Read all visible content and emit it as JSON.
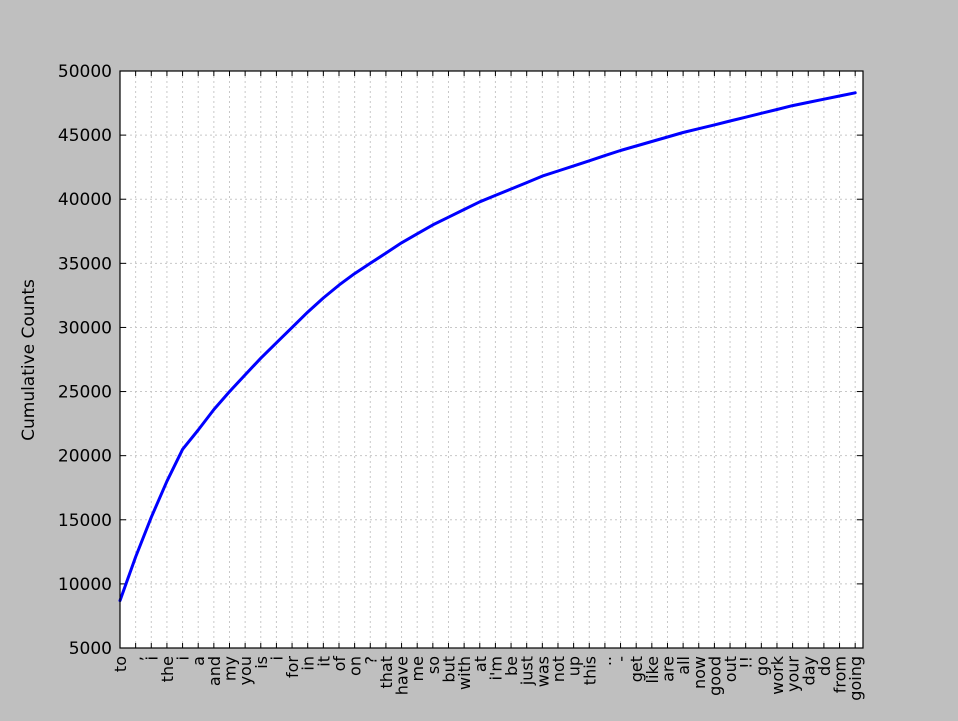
{
  "chart_data": {
    "type": "line",
    "title": "",
    "xlabel": "",
    "ylabel": "Cumulative Counts",
    "ylim": [
      5000,
      50000
    ],
    "yticks": [
      5000,
      10000,
      15000,
      20000,
      25000,
      30000,
      35000,
      40000,
      45000,
      50000
    ],
    "grid": true,
    "line_color": "#0000ff",
    "categories": [
      "to",
      ",",
      "i",
      "the",
      "i",
      "a",
      "and",
      "my",
      "you",
      "is",
      "i",
      "for",
      "in",
      "it",
      "of",
      "on",
      "?",
      "that",
      "have",
      "me",
      "so",
      "but",
      "with",
      "at",
      "i'm",
      "be",
      "just",
      "was",
      "not",
      "up",
      "this",
      "..",
      "-",
      "get",
      "like",
      "are",
      "all",
      "now",
      "good",
      "out",
      "!!",
      "go",
      "work",
      "your",
      "day",
      "do",
      "from",
      "going"
    ],
    "series": [
      {
        "values": [
          8700,
          12100,
          15200,
          18000,
          20500,
          22000,
          23600,
          25000,
          26300,
          27600,
          28800,
          30000,
          31200,
          32300,
          33300,
          34200,
          35000,
          35800,
          36600,
          37300,
          38000,
          38600,
          39200,
          39800,
          40300,
          40800,
          41300,
          41800,
          42200,
          42600,
          43000,
          43400,
          43800,
          44150,
          44500,
          44850,
          45200,
          45500,
          45800,
          46100,
          46400,
          46700,
          47000,
          47300,
          47550,
          47800,
          48050,
          48300
        ]
      }
    ]
  }
}
